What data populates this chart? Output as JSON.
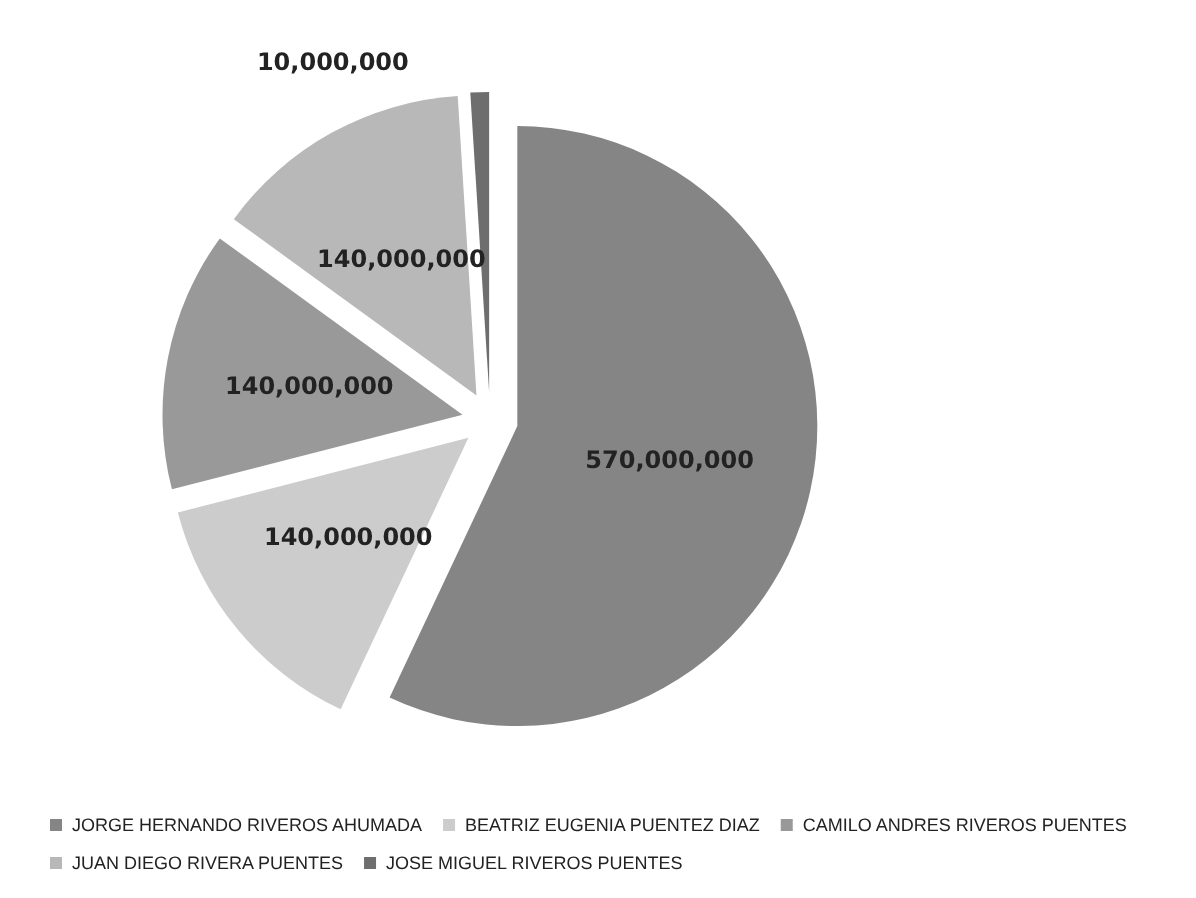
{
  "chart_data": {
    "type": "pie",
    "categories": [
      "JORGE HERNANDO RIVEROS AHUMADA",
      "BEATRIZ EUGENIA PUENTEZ DIAZ",
      "CAMILO ANDRES RIVEROS PUENTES",
      "JUAN DIEGO RIVERA PUENTES",
      "JOSE MIGUEL RIVEROS PUENTES"
    ],
    "values": [
      570000000,
      140000000,
      140000000,
      140000000,
      10000000
    ],
    "colors": [
      "#858585",
      "#cccccc",
      "#999999",
      "#b8b8b8",
      "#6e6e6e"
    ],
    "value_labels": [
      "570,000,000",
      "140,000,000",
      "140,000,000",
      "140,000,000",
      "10,000,000"
    ],
    "legend": "bottom"
  }
}
